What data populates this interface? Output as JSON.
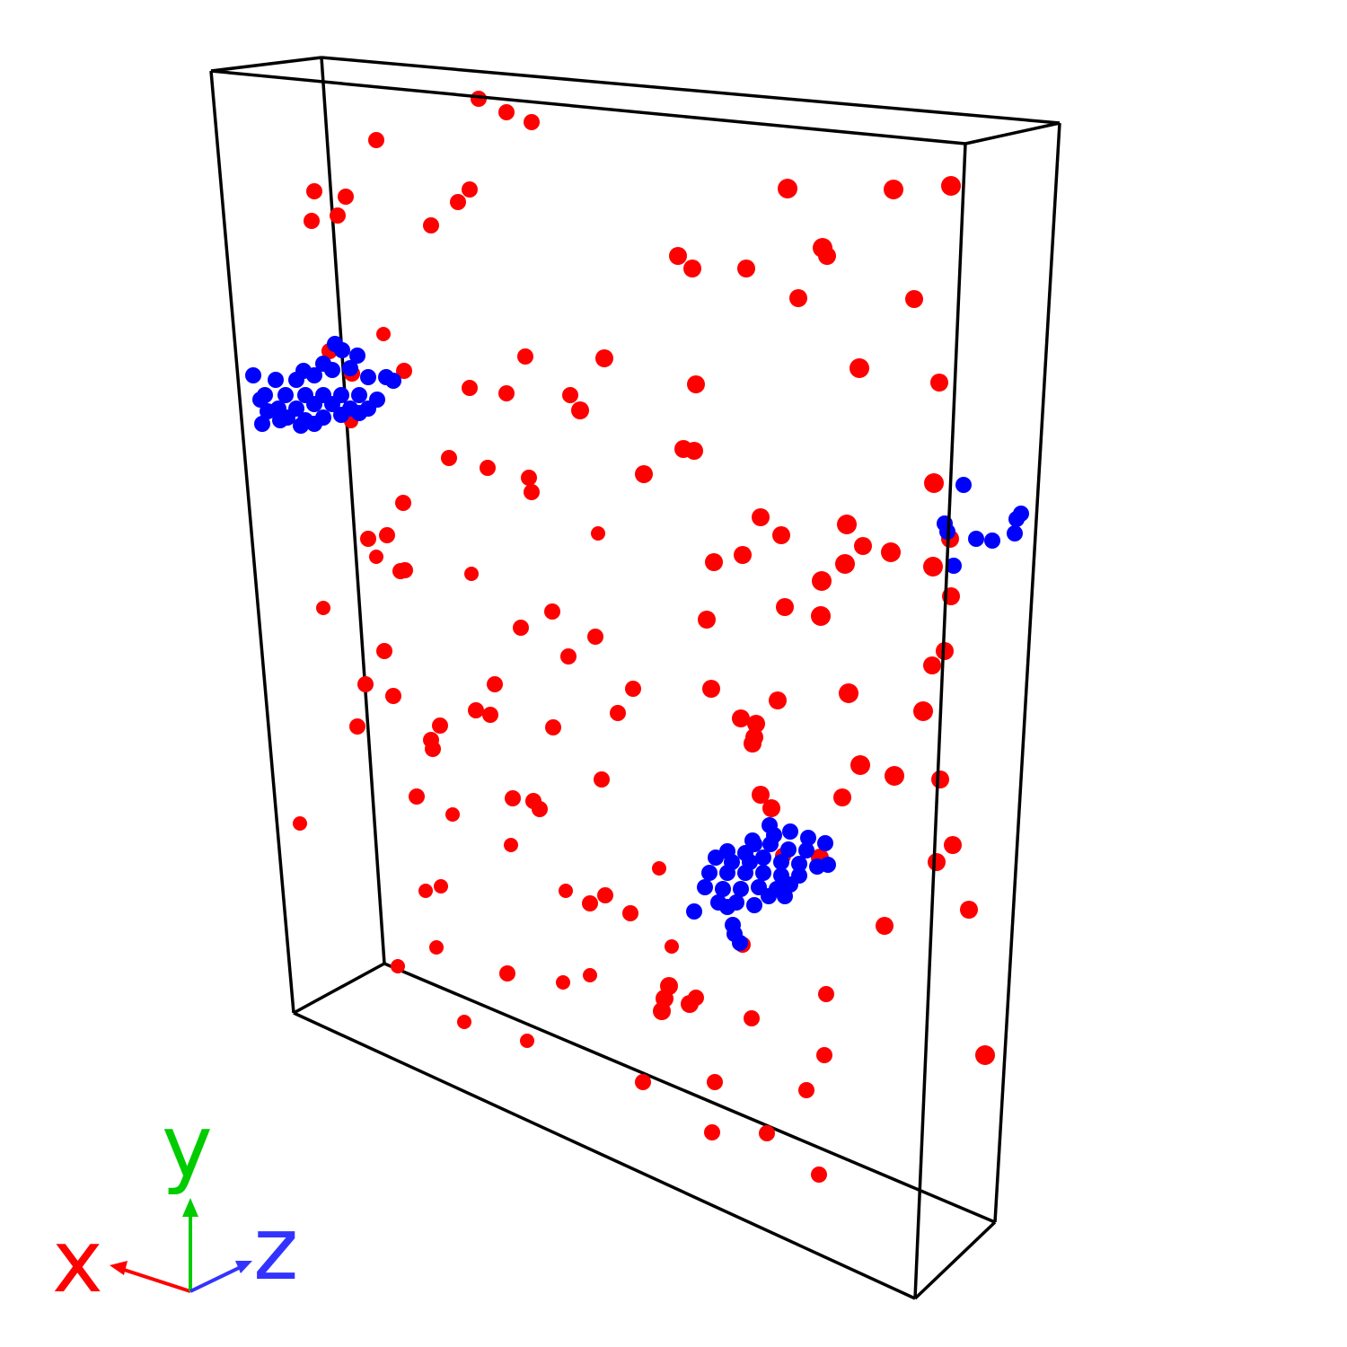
{
  "scene": {
    "background_color": "#ffffff",
    "box_color": "#000000",
    "atom_types": {
      "red": "#ff0000",
      "blue": "#0000ff"
    },
    "red_atom_count": 176,
    "blue_atom_count": 95
  },
  "axes": {
    "x": {
      "label": "x",
      "color": "#ff0000"
    },
    "y": {
      "label": "y",
      "color": "#00cc00"
    },
    "z": {
      "label": "z",
      "color": "#3333ff"
    }
  }
}
